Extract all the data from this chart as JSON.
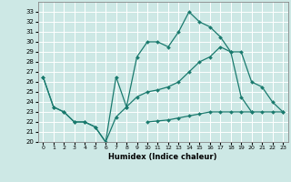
{
  "xlabel": "Humidex (Indice chaleur)",
  "background_color": "#cde8e5",
  "grid_color": "#ffffff",
  "line_color": "#1a7a6e",
  "xlim": [
    -0.5,
    23.5
  ],
  "ylim": [
    20,
    34
  ],
  "yticks": [
    20,
    21,
    22,
    23,
    24,
    25,
    26,
    27,
    28,
    29,
    30,
    31,
    32,
    33
  ],
  "xticks": [
    0,
    1,
    2,
    3,
    4,
    5,
    6,
    7,
    8,
    9,
    10,
    11,
    12,
    13,
    14,
    15,
    16,
    17,
    18,
    19,
    20,
    21,
    22,
    23
  ],
  "series": [
    {
      "x": [
        0,
        1,
        2,
        3,
        4,
        5,
        6,
        7,
        8,
        9,
        10,
        11,
        12,
        13,
        14,
        15,
        16,
        17,
        18,
        19,
        20
      ],
      "y": [
        26.5,
        23.5,
        23,
        22,
        22,
        21.5,
        20,
        26.5,
        23.5,
        28.5,
        30,
        30,
        29.5,
        31,
        33,
        32,
        31.5,
        30.5,
        29,
        24.5,
        23
      ]
    },
    {
      "x": [
        0,
        1,
        2,
        3,
        4,
        5,
        6,
        7,
        8,
        9,
        10,
        11,
        12,
        13,
        14,
        15,
        16,
        17,
        18,
        19,
        20,
        21,
        22,
        23
      ],
      "y": [
        26.5,
        23.5,
        23,
        22,
        22,
        21.5,
        20,
        22.5,
        23.5,
        24.5,
        25,
        25.2,
        25.5,
        26,
        27,
        28,
        28.5,
        29.5,
        29,
        29,
        26,
        25.5,
        24,
        23
      ]
    },
    {
      "x": [
        0,
        1,
        2,
        3,
        4,
        5,
        6,
        7,
        8,
        9,
        10,
        11,
        12,
        13,
        14,
        15,
        16,
        17,
        18,
        19,
        20,
        21,
        22,
        23
      ],
      "y": [
        null,
        null,
        null,
        null,
        null,
        null,
        null,
        null,
        null,
        null,
        22,
        22.1,
        22.2,
        22.4,
        22.6,
        22.8,
        23,
        23,
        23,
        23,
        23,
        23,
        23,
        23
      ]
    }
  ]
}
